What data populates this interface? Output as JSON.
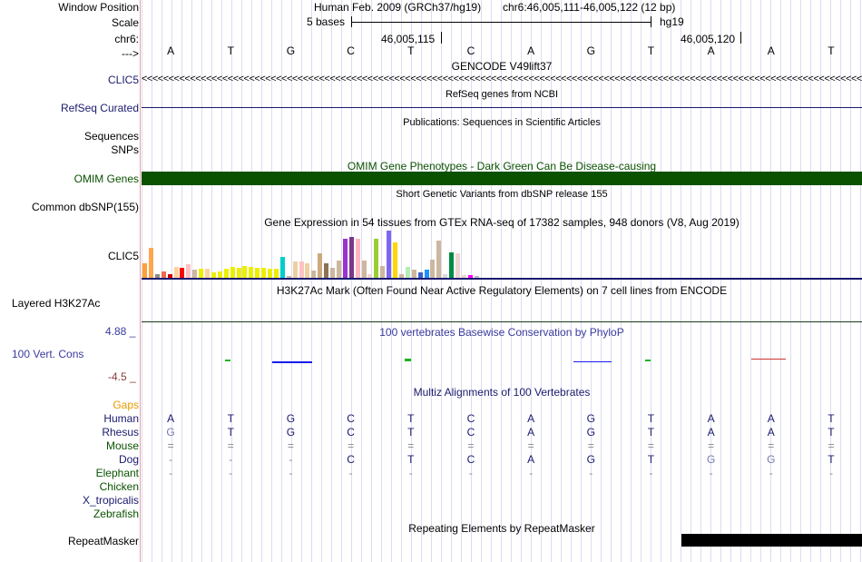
{
  "header": {
    "window_position_label": "Window Position",
    "scale_label": "Scale",
    "chrom_label": "chr6:",
    "arrow_label": "--->",
    "assembly": "Human Feb. 2009 (GRCh37/hg19)",
    "position": "chr6:46,005,111-46,005,122 (12 bp)",
    "scale_text": "5 bases",
    "scale_db": "hg19",
    "coord1": "46,005,115",
    "coord2": "46,005,120"
  },
  "sequence": [
    "A",
    "T",
    "G",
    "C",
    "T",
    "C",
    "A",
    "G",
    "T",
    "A",
    "A",
    "T"
  ],
  "tracks": {
    "gencode": {
      "title": "GENCODE V49lift37",
      "label": "CLIC5",
      "arrows": "<<<<<<<<<<<<<<<<<<<<<<<<<<<<<<<<<<<<<<<<<<<<<<<<<<<<<<<<<<<<<<<<<<<<<<<<<<<<<<<<<<<<<<<<<<<<<<<<<<<<<<<<<<<<<<<<<<<<<<<<<<<<<<<<<<<<<<<<<<<<<<<<<<<<<<<<<<<<"
    },
    "refseq": {
      "title": "RefSeq genes from NCBI",
      "label": "RefSeq Curated"
    },
    "publications": {
      "title": "Publications: Sequences in Scientific Articles",
      "label1": "Sequences",
      "label2": "SNPs"
    },
    "omim": {
      "title": "OMIM Gene Phenotypes - Dark Green Can Be Disease-causing",
      "label": "OMIM Genes",
      "color": "#0a5200"
    },
    "dbsnp": {
      "title": "Short Genetic Variants from dbSNP release 155",
      "label": "Common dbSNP(155)"
    },
    "gtex": {
      "title": "Gene Expression in 54 tissues from GTEx RNA-seq of 17382 samples, 948 donors (V8, Aug 2019)",
      "label": "CLIC5",
      "bars": [
        {
          "v": 0.3,
          "c": "#ff9f35"
        },
        {
          "v": 0.62,
          "c": "#ffa54f"
        },
        {
          "v": 0.08,
          "c": "#8b8b83"
        },
        {
          "v": 0.13,
          "c": "#ee6a50"
        },
        {
          "v": 0.08,
          "c": "#cd0000"
        },
        {
          "v": 0.22,
          "c": "#ffd39b"
        },
        {
          "v": 0.2,
          "c": "#ff0000"
        },
        {
          "v": 0.27,
          "c": "#ffc1c1"
        },
        {
          "v": 0.17,
          "c": "#cdb79e"
        },
        {
          "v": 0.19,
          "c": "#eeee00"
        },
        {
          "v": 0.18,
          "c": "#ffd39b"
        },
        {
          "v": 0.12,
          "c": "#eeee00"
        },
        {
          "v": 0.13,
          "c": "#eeee00"
        },
        {
          "v": 0.19,
          "c": "#eeee00"
        },
        {
          "v": 0.23,
          "c": "#eeee00"
        },
        {
          "v": 0.21,
          "c": "#eeee00"
        },
        {
          "v": 0.24,
          "c": "#eeee00"
        },
        {
          "v": 0.22,
          "c": "#eeee00"
        },
        {
          "v": 0.2,
          "c": "#eeee00"
        },
        {
          "v": 0.2,
          "c": "#eeee00"
        },
        {
          "v": 0.19,
          "c": "#eeee00"
        },
        {
          "v": 0.18,
          "c": "#eeee00"
        },
        {
          "v": 0.43,
          "c": "#00cdcd"
        },
        {
          "v": 0.04,
          "c": "#cdb79e"
        },
        {
          "v": 0.34,
          "c": "#eecfa1"
        },
        {
          "v": 0.34,
          "c": "#ffc1c1"
        },
        {
          "v": 0.3,
          "c": "#eecfa1"
        },
        {
          "v": 0.15,
          "c": "#cdb79e"
        },
        {
          "v": 0.5,
          "c": "#cdaa7d"
        },
        {
          "v": 0.3,
          "c": "#8b7355"
        },
        {
          "v": 0.21,
          "c": "#cdb79e"
        },
        {
          "v": 0.35,
          "c": "#cdb79e"
        },
        {
          "v": 0.8,
          "c": "#9a32cd"
        },
        {
          "v": 0.83,
          "c": "#7a378b"
        },
        {
          "v": 0.8,
          "c": "#ffb6c1"
        },
        {
          "v": 0.35,
          "c": "#cdb79e"
        },
        {
          "v": 0.08,
          "c": "#eed5d2"
        },
        {
          "v": 0.8,
          "c": "#9acd32"
        },
        {
          "v": 0.24,
          "c": "#cdb79e"
        },
        {
          "v": 0.97,
          "c": "#7b68ee"
        },
        {
          "v": 0.72,
          "c": "#ffd700"
        },
        {
          "v": 0.07,
          "c": "#cdb79e"
        },
        {
          "v": 0.23,
          "c": "#b4eeb4"
        },
        {
          "v": 0.17,
          "c": "#cdb79e"
        },
        {
          "v": 0.12,
          "c": "#3a5fcd"
        },
        {
          "v": 0.16,
          "c": "#1e90ff"
        },
        {
          "v": 0.37,
          "c": "#cdb79e"
        },
        {
          "v": 0.75,
          "c": "#cdb79e"
        },
        {
          "v": 0.07,
          "c": "#d9d9d9"
        },
        {
          "v": 0.52,
          "c": "#008b45"
        },
        {
          "v": 0.5,
          "c": "#eed5d2"
        },
        {
          "v": 0.05,
          "c": "#eed5d2"
        },
        {
          "v": 0.05,
          "c": "#ff00ff"
        },
        {
          "v": 0.03,
          "c": "#bebebe"
        }
      ]
    },
    "h3k27ac": {
      "title": "H3K27Ac Mark (Often Found Near Active Regulatory Elements) on 7 cell lines from ENCODE",
      "label": "Layered H3K27Ac"
    },
    "phylop": {
      "title": "100 vertebrates Basewise Conservation by PhyloP",
      "label": "100 Vert. Cons",
      "max": "4.88 _",
      "min": "-4.5 _"
    },
    "multiz": {
      "title": "Multiz Alignments of 100 Vertebrates",
      "gaps_label": "Gaps",
      "rows": [
        {
          "name": "Human",
          "bases": [
            "A",
            "T",
            "G",
            "C",
            "T",
            "C",
            "A",
            "G",
            "T",
            "A",
            "A",
            "T"
          ]
        },
        {
          "name": "Rhesus",
          "bases": [
            "G",
            "T",
            "G",
            "C",
            "T",
            "C",
            "A",
            "G",
            "T",
            "A",
            "A",
            "T"
          ]
        },
        {
          "name": "Mouse",
          "bases": [
            "=",
            "=",
            "=",
            "=",
            "=",
            "=",
            "=",
            "=",
            "=",
            "=",
            "=",
            "="
          ]
        },
        {
          "name": "Dog",
          "bases": [
            "-",
            "-",
            "-",
            "C",
            "T",
            "C",
            "A",
            "G",
            "T",
            "G",
            "G",
            "T"
          ]
        },
        {
          "name": "Elephant",
          "bases": [
            "-",
            "-",
            "-",
            "-",
            "-",
            "-",
            "-",
            "-",
            "-",
            "-",
            "-",
            "-"
          ]
        },
        {
          "name": "Chicken",
          "bases": []
        },
        {
          "name": "X_tropicalis",
          "bases": []
        },
        {
          "name": "Zebrafish",
          "bases": []
        }
      ]
    },
    "repeatmasker": {
      "title": "Repeating Elements by RepeatMasker",
      "label": "RepeatMasker"
    }
  }
}
